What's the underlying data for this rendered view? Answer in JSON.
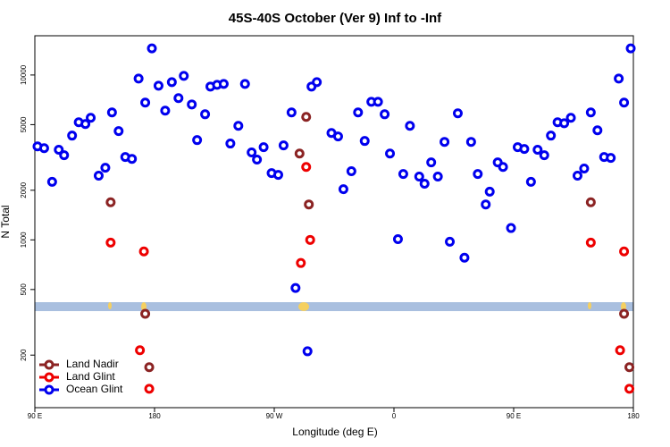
{
  "chart_data": {
    "type": "scatter",
    "title": "45S-40S October (Ver 9)   Inf to -Inf",
    "xlabel": "Longitude (deg E)",
    "ylabel": "N Total",
    "log_y": true,
    "legend": "bottom-left",
    "xlim": [
      90,
      540
    ],
    "xticks": [
      {
        "value": 90,
        "label": "90 E"
      },
      180,
      {
        "value": 270,
        "label": "90 W"
      },
      {
        "value": 360,
        "label": "0"
      },
      {
        "value": 450,
        "label": "90 E"
      },
      {
        "value": 540,
        "label": "180"
      }
    ],
    "ylim": [
      96,
      17300
    ],
    "yticks": [
      200,
      500,
      1000,
      2000,
      5000,
      10000
    ],
    "series": [
      {
        "name": "Land Nadir",
        "color": "#8b2323",
        "x": [
          147,
          173,
          176,
          289,
          294,
          296,
          508,
          533,
          537
        ],
        "values": [
          1690,
          356,
          169,
          3340,
          5570,
          1640,
          1690,
          356,
          169
        ]
      },
      {
        "name": "Land Glint",
        "color": "#ee0000",
        "x": [
          147,
          172,
          169,
          176,
          290,
          294,
          297,
          508,
          533,
          530,
          537
        ],
        "values": [
          963,
          851,
          214,
          125,
          724,
          2770,
          1000,
          963,
          851,
          214,
          125
        ]
      },
      {
        "name": "Ocean Glint",
        "color": "#0000ee",
        "x": [
          92,
          97,
          103,
          108,
          112,
          118,
          123,
          128,
          132,
          138,
          143,
          148,
          153,
          158,
          163,
          168,
          173,
          178,
          183,
          188,
          193,
          198,
          202,
          208,
          212,
          218,
          222,
          227,
          232,
          237,
          243,
          248,
          253,
          257,
          262,
          268,
          273,
          277,
          283,
          286,
          295,
          298,
          302,
          313,
          318,
          322,
          328,
          333,
          338,
          343,
          348,
          353,
          357,
          363,
          367,
          372,
          379,
          383,
          388,
          393,
          398,
          402,
          408,
          413,
          418,
          423,
          429,
          432,
          438,
          442,
          448,
          453,
          458,
          463,
          468,
          473,
          478,
          483,
          488,
          493,
          498,
          503,
          508,
          513,
          518,
          523,
          529,
          533,
          538
        ],
        "values": [
          3690,
          3600,
          2250,
          3520,
          3260,
          4290,
          5170,
          5040,
          5500,
          2450,
          2740,
          5930,
          4570,
          3180,
          3100,
          9510,
          6800,
          14500,
          8610,
          6080,
          9050,
          7240,
          9880,
          6630,
          4030,
          5780,
          8510,
          8720,
          8830,
          3840,
          4920,
          8830,
          3390,
          3070,
          3650,
          2540,
          2480,
          3740,
          5930,
          511,
          211,
          8510,
          9050,
          4450,
          4240,
          2030,
          2610,
          5930,
          3980,
          6880,
          6880,
          5780,
          3340,
          1010,
          2510,
          4920,
          2420,
          2190,
          2950,
          2420,
          3930,
          975,
          5860,
          780,
          3930,
          2510,
          1640,
          1960,
          2950,
          2770,
          1180,
          3650,
          3560,
          2250,
          3520,
          3260,
          4290,
          5170,
          5100,
          5500,
          2450,
          2710,
          5930,
          4620,
          3180,
          3140,
          9510,
          6800,
          14500
        ]
      }
    ]
  }
}
